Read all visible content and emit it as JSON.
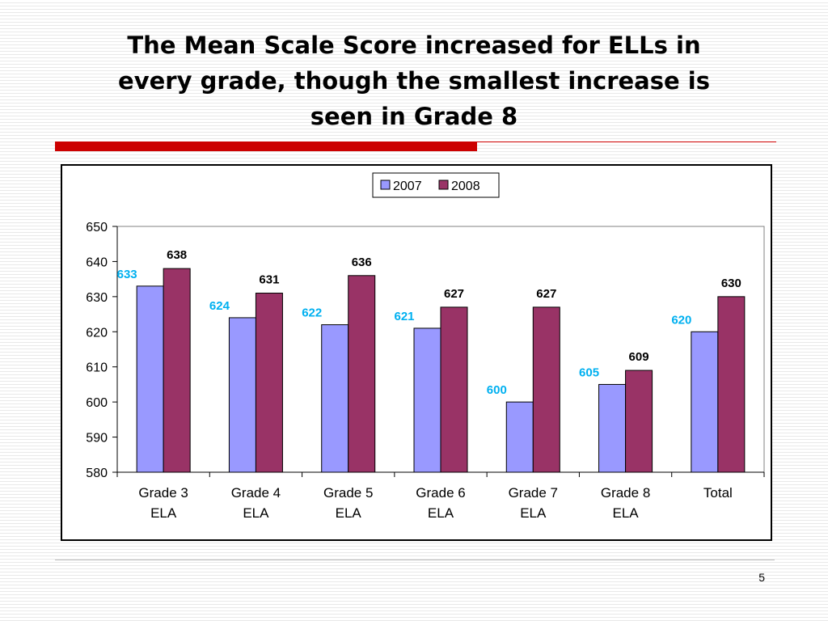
{
  "slide": {
    "title_lines": [
      "The Mean Scale Score increased for ELLs in",
      "every grade, though the smallest increase is",
      "seen in Grade 8"
    ],
    "page_number": "5"
  },
  "colors": {
    "series_2007": "#9999ff",
    "series_2008": "#993366",
    "label_2007": "#00b0f0",
    "label_2008": "#000000",
    "accent_rule": "#cc0000"
  },
  "chart_data": {
    "type": "bar",
    "categories": [
      [
        "Grade 3",
        "ELA"
      ],
      [
        "Grade 4",
        "ELA"
      ],
      [
        "Grade 5",
        "ELA"
      ],
      [
        "Grade 6",
        "ELA"
      ],
      [
        "Grade 7",
        "ELA"
      ],
      [
        "Grade 8",
        "ELA"
      ],
      [
        "Total"
      ]
    ],
    "series": [
      {
        "name": "2007",
        "values": [
          633,
          624,
          622,
          621,
          600,
          605,
          620
        ]
      },
      {
        "name": "2008",
        "values": [
          638,
          631,
          636,
          627,
          627,
          609,
          630
        ]
      }
    ],
    "ylim": [
      580,
      650
    ],
    "yticks": [
      580,
      590,
      600,
      610,
      620,
      630,
      640,
      650
    ],
    "grid": false,
    "legend_position": "top-center"
  }
}
